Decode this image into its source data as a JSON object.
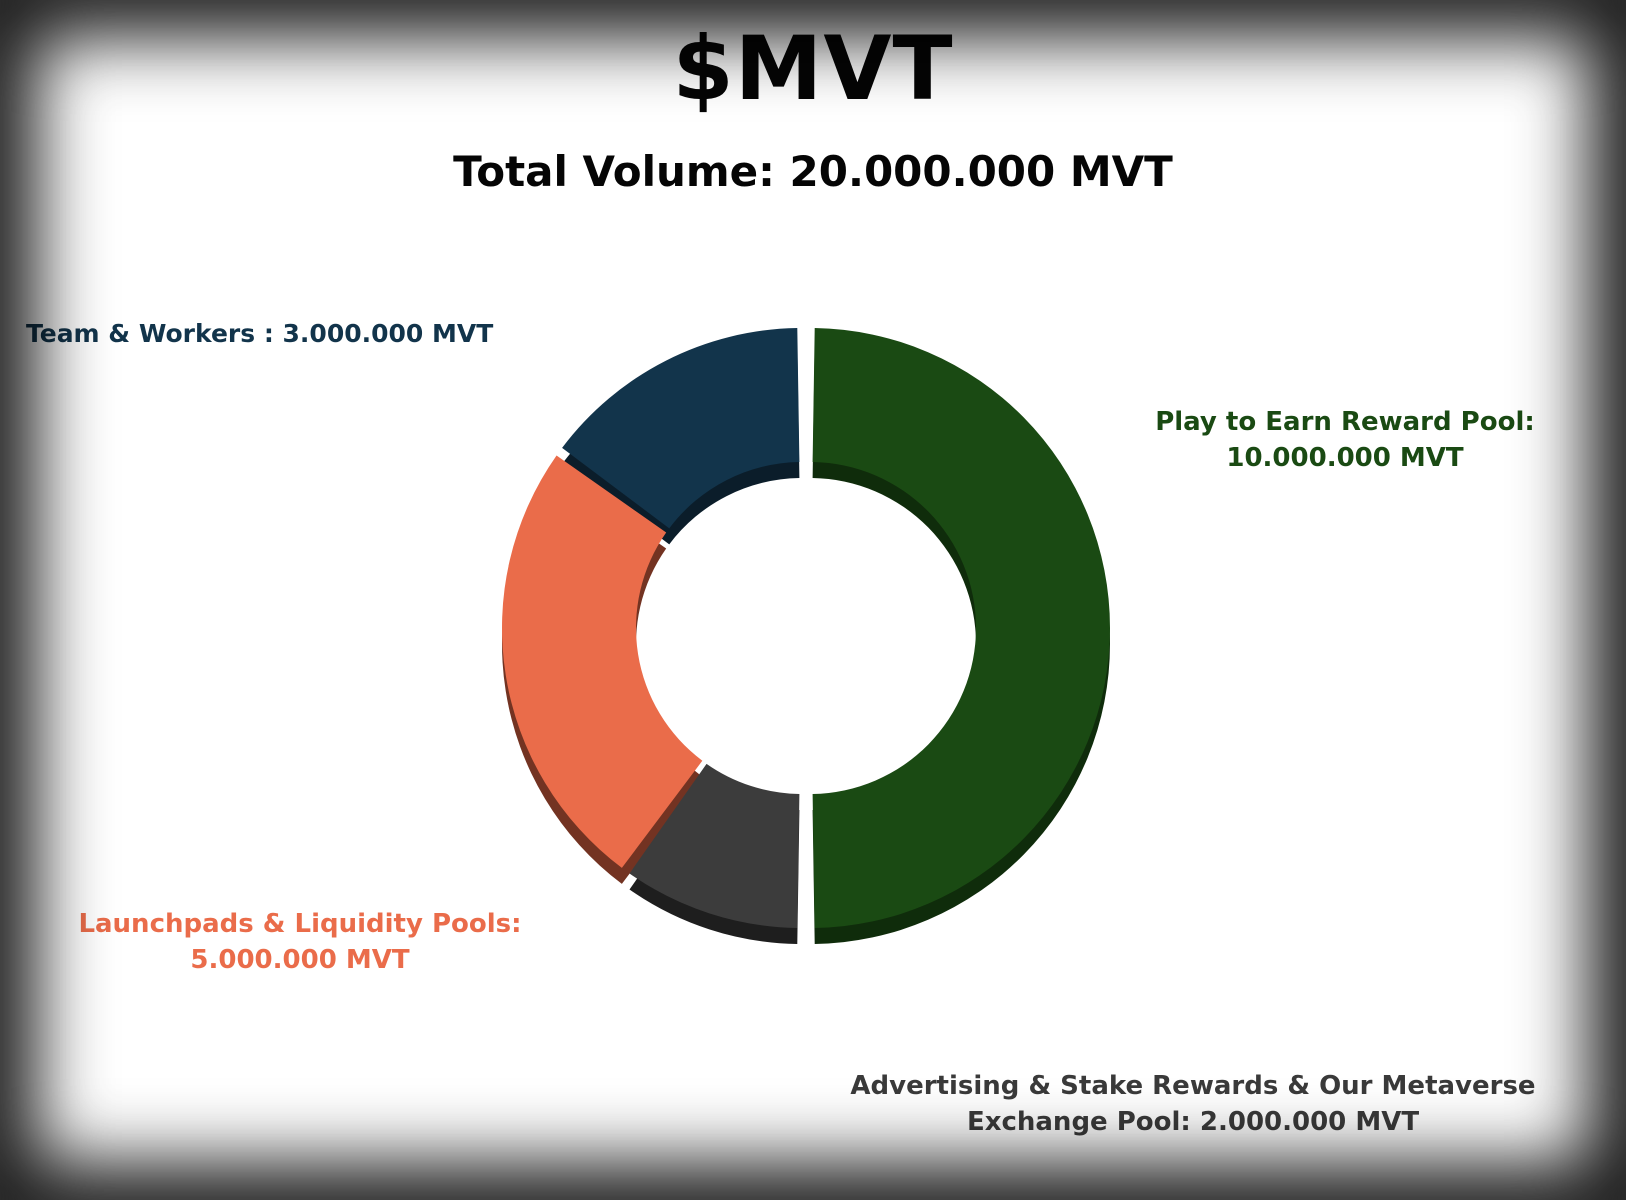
{
  "title": "$MVT",
  "subtitle": "Total Volume: 20.000.000 MVT",
  "chart_data": {
    "type": "pie",
    "variant": "donut",
    "title": "$MVT",
    "subtitle": "Total Volume: 20.000.000 MVT",
    "total": 20000000,
    "unit": "MVT",
    "legend": "none",
    "slices": [
      {
        "key": "play",
        "label_lines": [
          "Play to Earn Reward Pool:",
          "10.000.000 MVT"
        ],
        "value": 10000000,
        "color": "#1a4a13",
        "shade": "#0f2c0b"
      },
      {
        "key": "adv",
        "label_lines": [
          "Advertising & Stake Rewards & Our Metaverse",
          "Exchange Pool: 2.000.000 MVT"
        ],
        "value": 2000000,
        "color": "#3c3c3c",
        "shade": "#1e1e1e"
      },
      {
        "key": "launch",
        "label_lines": [
          "Launchpads & Liquidity Pools:",
          "5.000.000 MVT"
        ],
        "value": 5000000,
        "color": "#ea6c4a",
        "shade": "#733322"
      },
      {
        "key": "team",
        "label_lines": [
          "Team & Workers : 3.000.000 MVT"
        ],
        "value": 3000000,
        "color": "#12344b",
        "shade": "#0b1d2a"
      }
    ]
  }
}
